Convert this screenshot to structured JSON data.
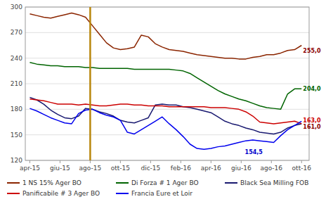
{
  "chart_data": {
    "type": "line",
    "x": [
      0,
      0.4615384615,
      0.9230769231,
      1.3846153846,
      1.8461538462,
      2.3076923077,
      2.7692307692,
      3.2307692308,
      3.6923076923,
      4.1538461538,
      4.6153846154,
      5.0769230769,
      5.5384615385,
      6,
      6.4615384615,
      6.9230769231,
      7.3846153846,
      7.8461538462,
      8.3076923077,
      8.7692307692,
      9.2307692308,
      9.6923076923,
      10.1538461538,
      10.6153846154,
      11.0769230769,
      11.5384615385,
      12,
      12.4615384615,
      12.9230769231,
      13.3846153846,
      13.8461538462,
      14.3076923077,
      14.7692307692,
      15.2307692308,
      15.6923076923,
      16.1538461538,
      16.6153846154,
      17.0769230769,
      17.5384615385,
      18
    ],
    "xlim": [
      -0.3,
      18.5
    ],
    "xticks": [
      {
        "value": 0,
        "label": "apr-15"
      },
      {
        "value": 2,
        "label": "giu-15"
      },
      {
        "value": 4,
        "label": "ago-15"
      },
      {
        "value": 6,
        "label": "ott-15"
      },
      {
        "value": 8,
        "label": "dic-15"
      },
      {
        "value": 10,
        "label": "feb-16"
      },
      {
        "value": 12,
        "label": "apr-16"
      },
      {
        "value": 14,
        "label": "giu-16"
      },
      {
        "value": 16,
        "label": "ago-16"
      },
      {
        "value": 18,
        "label": "ott-16"
      }
    ],
    "ylim": [
      120,
      300
    ],
    "yticks": [
      120,
      150,
      180,
      210,
      240,
      270,
      300
    ],
    "grid": true,
    "legend": "bottom",
    "series": [
      {
        "name": "1 NS 15% Ager BO",
        "color": "#8B2500",
        "values": [
          292,
          290,
          288,
          287,
          289,
          291,
          293,
          291,
          288,
          278,
          268,
          258,
          252,
          250,
          251,
          253,
          267,
          265,
          257,
          253,
          250,
          249,
          248,
          246,
          244,
          243,
          242,
          241,
          240,
          240,
          239,
          239,
          241,
          242,
          244,
          244,
          246,
          249,
          250,
          255
        ]
      },
      {
        "name": "Di Forza # 1 Ager BO",
        "color": "#006400",
        "values": [
          235,
          233,
          232,
          231,
          231,
          230,
          230,
          230,
          229,
          229,
          228,
          228,
          228,
          228,
          228,
          227,
          227,
          227,
          227,
          227,
          227,
          226,
          225,
          222,
          217,
          212,
          207,
          202,
          198,
          195,
          192,
          190,
          187,
          184,
          182,
          181,
          180,
          198,
          204,
          204
        ]
      },
      {
        "name": "Black Sea Milling FOB",
        "color": "#191970",
        "values": [
          194,
          191,
          186,
          179,
          174,
          170,
          169,
          172,
          181,
          180,
          177,
          175,
          172,
          167,
          165,
          164,
          167,
          170,
          185,
          186,
          185,
          185,
          183,
          182,
          180,
          178,
          176,
          171,
          166,
          163,
          161,
          158,
          156,
          153,
          152,
          151,
          153,
          158,
          161,
          163
        ]
      },
      {
        "name": "Panificabile # 3 Ager BO",
        "color": "#CC0000",
        "values": [
          192,
          191,
          190,
          188,
          186,
          186,
          186,
          185,
          186,
          185,
          184,
          184,
          185,
          186,
          186,
          185,
          185,
          184,
          184,
          184,
          183,
          183,
          183,
          183,
          183,
          183,
          182,
          182,
          182,
          181,
          180,
          177,
          172,
          165,
          164,
          163,
          164,
          165,
          166,
          163
        ]
      },
      {
        "name": "Francia Eure et Loir",
        "color": "#0000EE",
        "values": [
          181,
          178,
          174,
          170,
          167,
          164,
          163,
          175,
          179,
          180,
          176,
          173,
          171,
          167,
          153,
          151,
          156,
          161,
          166,
          171,
          163,
          156,
          148,
          139,
          134,
          133,
          134,
          136,
          137,
          139,
          141,
          143,
          144,
          143,
          142,
          141,
          149,
          156,
          161,
          166
        ]
      }
    ],
    "vlines": [
      {
        "x": 4.0,
        "color": "#B8860B"
      }
    ],
    "annotations": [
      {
        "text": "255,0",
        "x": 18.05,
        "y": 249,
        "color": "#8B0000"
      },
      {
        "text": "204,0",
        "x": 18.05,
        "y": 204,
        "color": "#006400"
      },
      {
        "text": "163,0",
        "x": 18.05,
        "y": 167,
        "color": "#CC0000"
      },
      {
        "text": "161,0",
        "x": 18.05,
        "y": 160,
        "color": "#8B0000"
      },
      {
        "text": "154,5",
        "x": 14.2,
        "y": 130,
        "color": "#0000CD"
      }
    ]
  }
}
